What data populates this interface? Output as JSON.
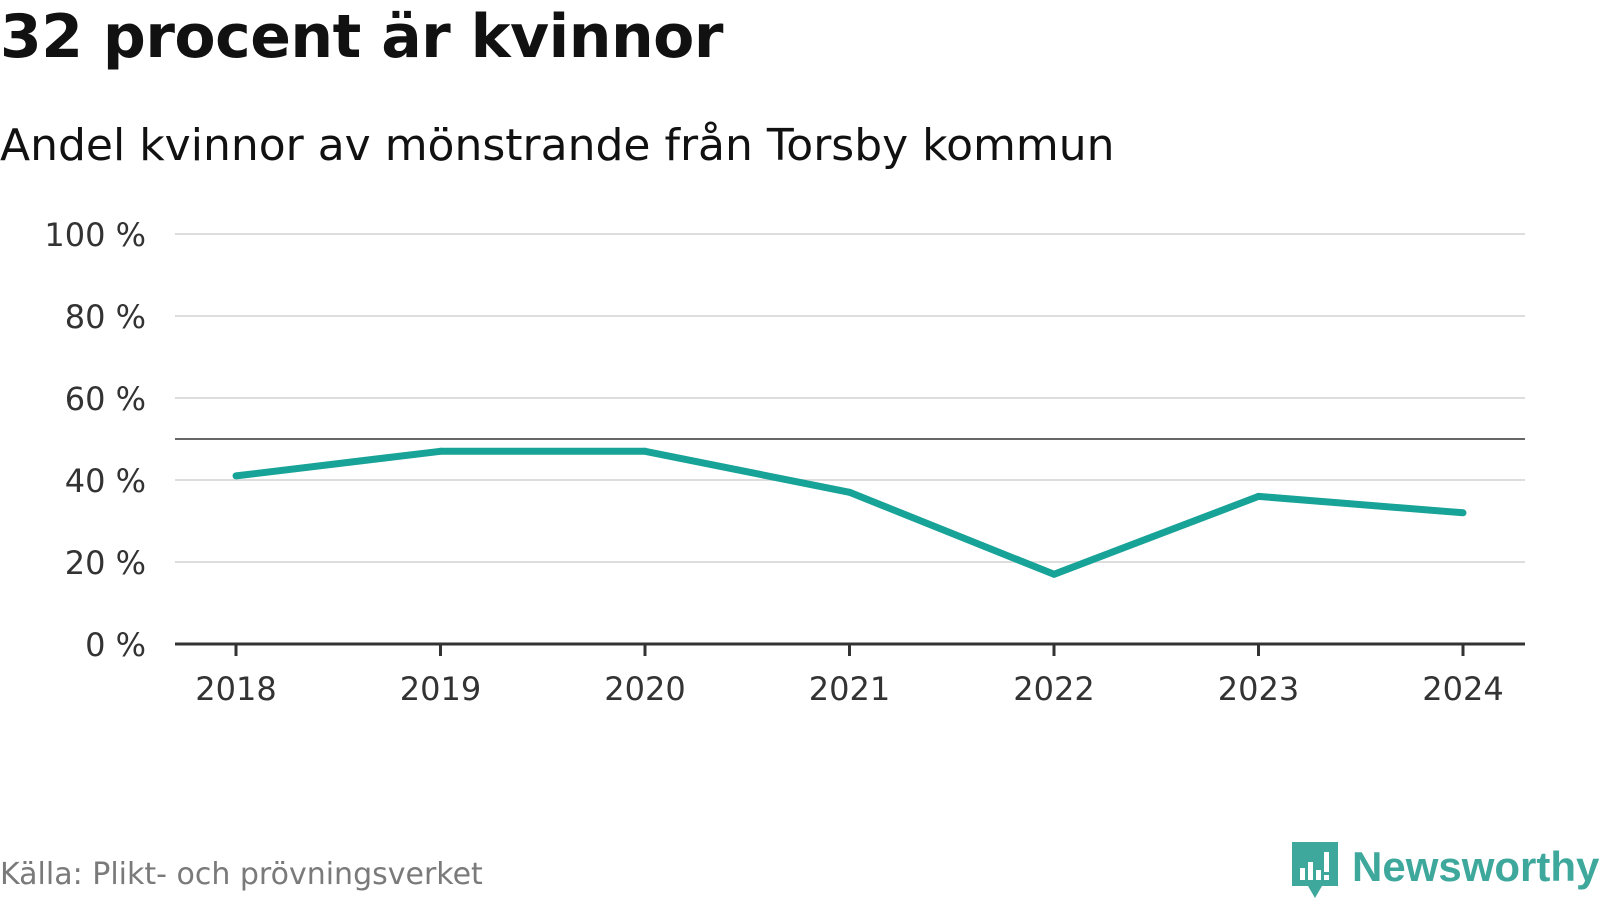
{
  "header": {
    "title": "32 procent är kvinnor",
    "subtitle": "Andel kvinnor av mönstrande från Torsby kommun"
  },
  "footer": {
    "source": "Källa: Plikt- och prövningsverket",
    "brand": "Newsworthy"
  },
  "colors": {
    "series": "#17a397",
    "reference_line": "#666666",
    "grid": "#dddddd",
    "axis": "#333333",
    "brand": "#3fa89c"
  },
  "icons": {
    "brand_logo": "newsworthy-logo-icon"
  },
  "chart_data": {
    "type": "line",
    "title": "32 procent är kvinnor",
    "subtitle": "Andel kvinnor av mönstrande från Torsby kommun",
    "xlabel": "",
    "ylabel": "",
    "categories": [
      "2018",
      "2019",
      "2020",
      "2021",
      "2022",
      "2023",
      "2024"
    ],
    "series": [
      {
        "name": "Andel kvinnor",
        "values": [
          41,
          47,
          47,
          37,
          17,
          36,
          32
        ]
      }
    ],
    "ylim": [
      0,
      100
    ],
    "yticks": [
      0,
      20,
      40,
      60,
      80,
      100
    ],
    "ytick_labels": [
      "0 %",
      "20 %",
      "40 %",
      "60 %",
      "80 %",
      "100 %"
    ],
    "reference_line": 50,
    "grid": true,
    "legend": "none"
  }
}
